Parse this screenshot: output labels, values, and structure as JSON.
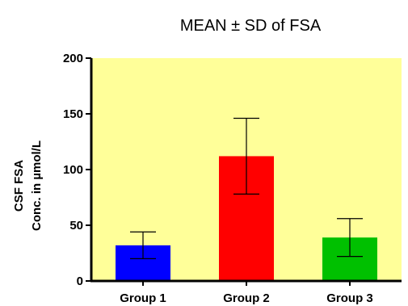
{
  "chart_data": {
    "type": "bar",
    "title": "MEAN ± SD of FSA",
    "ylabel_lines": [
      "CSF FSA",
      "Conc. in µmol/L"
    ],
    "xlabel": "",
    "categories": [
      "Group 1",
      "Group 2",
      "Group 3"
    ],
    "values": [
      32,
      112,
      39
    ],
    "errors": [
      12,
      34,
      17
    ],
    "bar_colors": [
      "#0000ff",
      "#ff0000",
      "#00c000"
    ],
    "ylim": [
      0,
      200
    ],
    "yticks": [
      "0",
      "50",
      "100",
      "150",
      "200"
    ],
    "plot_background": "#ffff99",
    "grid": false,
    "legend": "none"
  }
}
